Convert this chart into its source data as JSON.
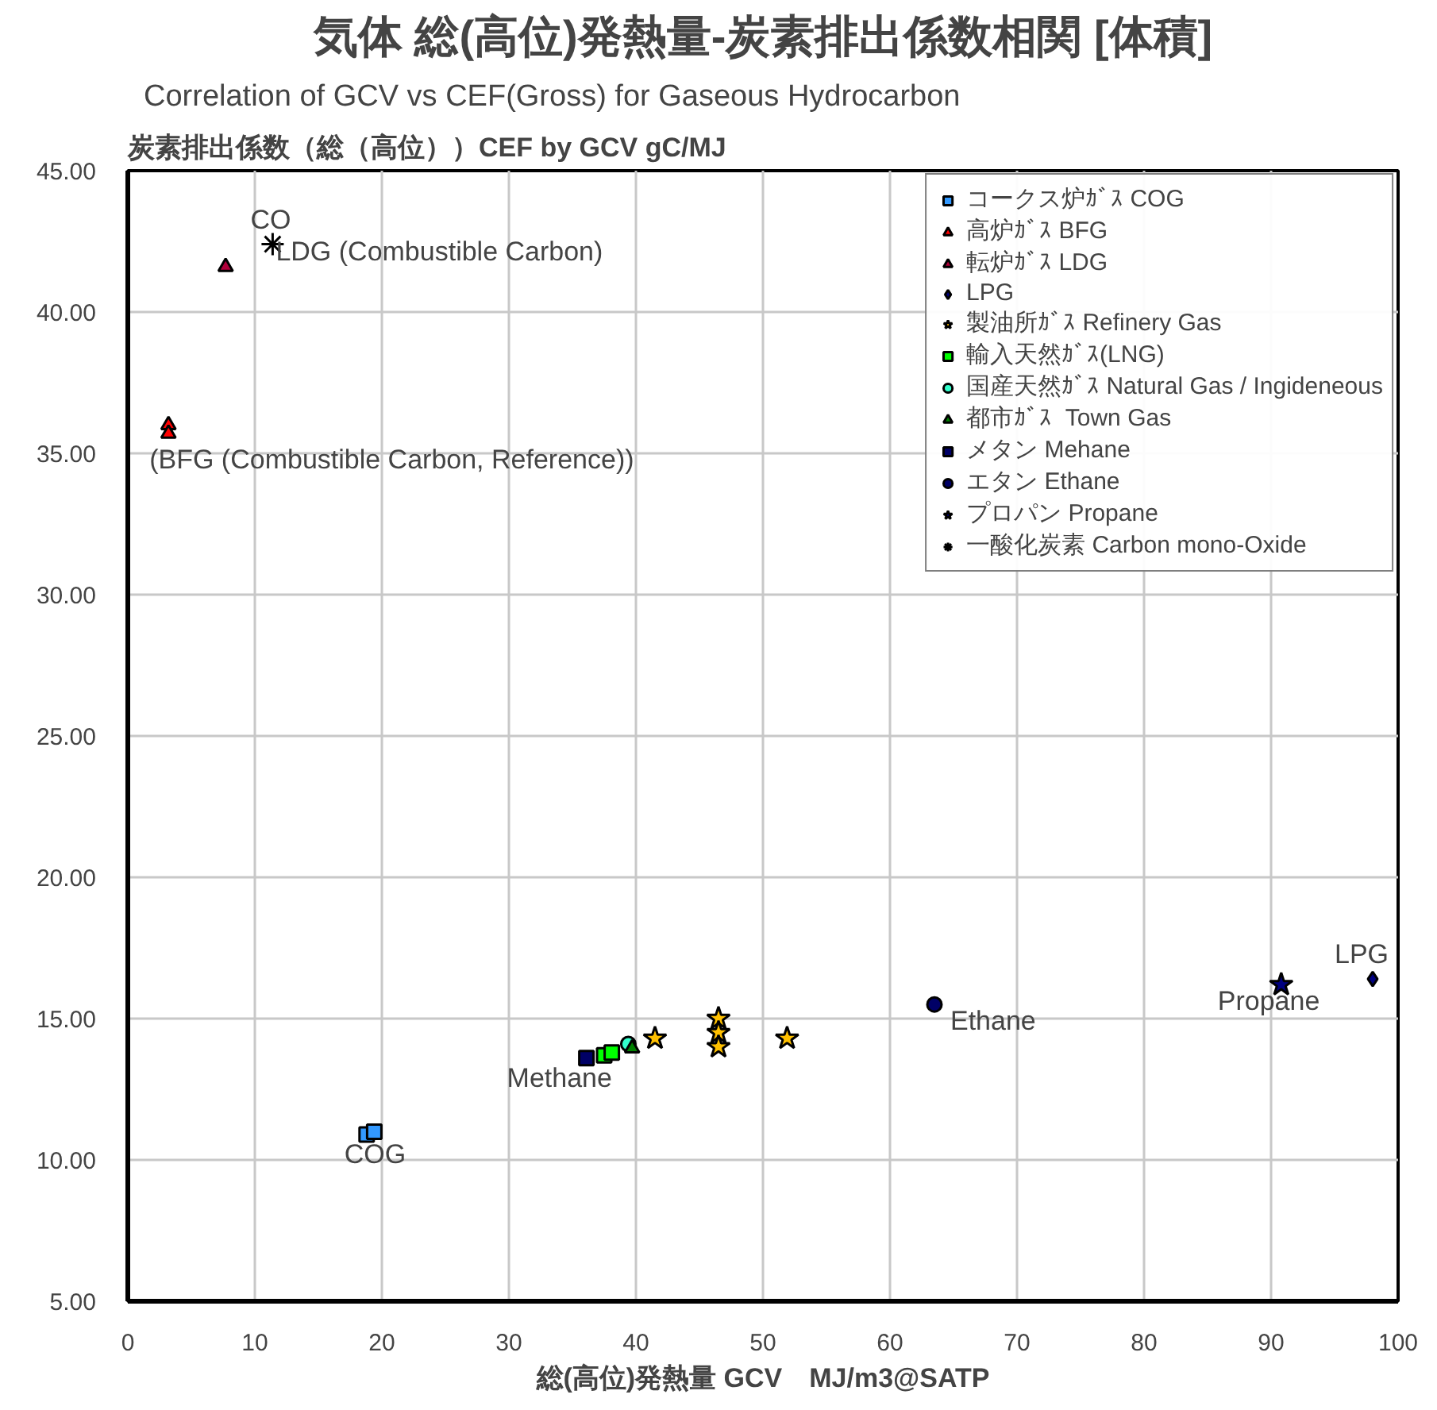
{
  "chart_data": {
    "type": "scatter",
    "title": "気体 総(高位)発熱量-炭素排出係数相関 [体積]",
    "subtitle": "Correlation of GCV vs CEF(Gross) for Gaseous Hydrocarbon",
    "ylabel": "炭素排出係数（総（高位））CEF by GCV gC/MJ",
    "xlabel": "総(高位)発熱量 GCV　MJ/m3@SATP",
    "xlim": [
      0,
      100
    ],
    "xticks": [
      0,
      10,
      20,
      30,
      40,
      50,
      60,
      70,
      80,
      90,
      100
    ],
    "ylim": [
      5,
      45
    ],
    "yticks": [
      {
        "value": 5,
        "label": "5.00"
      },
      {
        "value": 10,
        "label": "10.00"
      },
      {
        "value": 15,
        "label": "15.00"
      },
      {
        "value": 20,
        "label": "20.00"
      },
      {
        "value": 25,
        "label": "25.00"
      },
      {
        "value": 30,
        "label": "30.00"
      },
      {
        "value": 35,
        "label": "35.00"
      },
      {
        "value": 40,
        "label": "40.00"
      },
      {
        "value": 45,
        "label": "45.00"
      }
    ],
    "grid": true,
    "legend": "top right",
    "series": [
      {
        "name": "コークス炉ｶﾞｽ COG",
        "color": "#3399ff",
        "marker": "square",
        "x": [
          18.8,
          19.4
        ],
        "values": [
          10.9,
          11.0
        ]
      },
      {
        "name": "高炉ｶﾞｽ BFG",
        "color": "#ff0000",
        "marker": "triangle",
        "x": [
          3.2,
          3.2
        ],
        "values": [
          36.0,
          35.7
        ]
      },
      {
        "name": "転炉ｶﾞｽ LDG",
        "color": "#b0003a",
        "marker": "triangle",
        "x": [
          7.7
        ],
        "values": [
          41.6
        ]
      },
      {
        "name": "LPG",
        "color": "#000080",
        "marker": "diamond",
        "x": [
          98.0
        ],
        "values": [
          16.4
        ]
      },
      {
        "name": "製油所ｶﾞｽ Refinery Gas",
        "color": "#ffc000",
        "marker": "star",
        "x": [
          41.5,
          46.5,
          46.5,
          46.5,
          51.9
        ],
        "values": [
          14.3,
          15.0,
          14.5,
          14.0,
          14.3
        ]
      },
      {
        "name": "輸入天然ｶﾞｽ(LNG)",
        "color": "#00ff00",
        "marker": "square",
        "x": [
          37.5,
          38.1
        ],
        "values": [
          13.7,
          13.8
        ]
      },
      {
        "name": "国産天然ｶﾞｽ Natural Gas / Ingideneous",
        "color": "#33ffcc",
        "marker": "circle",
        "x": [
          39.4
        ],
        "values": [
          14.1
        ]
      },
      {
        "name": "都市ｶﾞｽ  Town Gas",
        "color": "#008000",
        "marker": "triangle",
        "x": [
          39.7
        ],
        "values": [
          13.95
        ]
      },
      {
        "name": "メタン Mehane",
        "color": "#000066",
        "marker": "square",
        "x": [
          36.1
        ],
        "values": [
          13.6
        ]
      },
      {
        "name": "エタン Ethane",
        "color": "#000066",
        "marker": "circle",
        "x": [
          63.5
        ],
        "values": [
          15.5
        ]
      },
      {
        "name": "プロパン Propane",
        "color": "#000080",
        "marker": "star",
        "x": [
          90.8
        ],
        "values": [
          16.2
        ]
      },
      {
        "name": "一酸化炭素 Carbon mono-Oxide",
        "color": "#000000",
        "marker": "cross",
        "x": [
          11.4
        ],
        "values": [
          42.4
        ]
      }
    ],
    "annotations": [
      {
        "text": "CO",
        "x": 11.4,
        "y": 42.4
      },
      {
        "text": "LDG (Combustible Carbon)",
        "x": 11.4,
        "y": 42.4
      },
      {
        "text": "(BFG (Combustible Carbon, Reference))",
        "x": 3.2,
        "y": 35.7
      },
      {
        "text": "COG",
        "x": 18.8,
        "y": 10.9
      },
      {
        "text": "Methane",
        "x": 36.1,
        "y": 13.6
      },
      {
        "text": "Ethane",
        "x": 63.5,
        "y": 15.5
      },
      {
        "text": "Propane",
        "x": 90.8,
        "y": 16.2
      },
      {
        "text": "LPG",
        "x": 98.0,
        "y": 16.4
      }
    ]
  }
}
